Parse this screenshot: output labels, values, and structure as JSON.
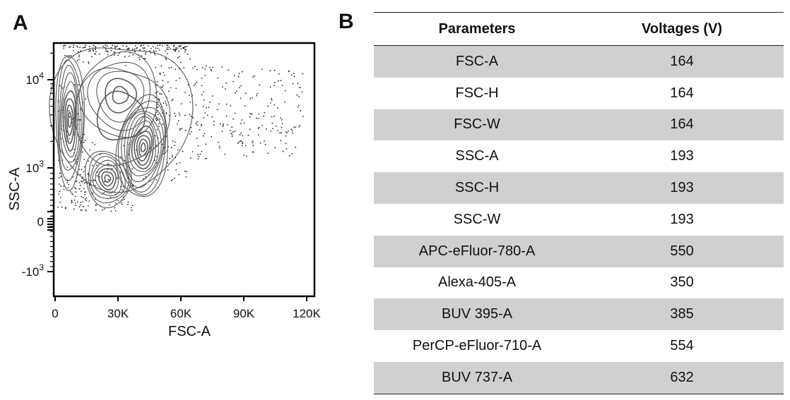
{
  "panels": {
    "a": "A",
    "b": "B"
  },
  "chart_data": [
    {
      "type": "scatter",
      "xlabel": "FSC-A",
      "ylabel": "SSC-A",
      "xlim": [
        0,
        125000
      ],
      "x_ticks": [
        {
          "value": 0,
          "label": "0"
        },
        {
          "value": 30000,
          "label": "30K"
        },
        {
          "value": 60000,
          "label": "60K"
        },
        {
          "value": 90000,
          "label": "90K"
        },
        {
          "value": 120000,
          "label": "120K"
        }
      ],
      "y_scale": "biexponential",
      "y_ticks": [
        {
          "value": -1000,
          "label": "-10",
          "exp": "3"
        },
        {
          "value": 0,
          "label": "0",
          "exp": ""
        },
        {
          "value": 1000,
          "label": "10",
          "exp": "3"
        },
        {
          "value": 10000,
          "label": "10",
          "exp": "4"
        }
      ],
      "style": "contour plot with outliers",
      "populations": [
        {
          "x_center": 7000,
          "y_center": 3500
        },
        {
          "x_center": 42000,
          "y_center": 1700
        },
        {
          "x_center": 25000,
          "y_center": 800
        }
      ]
    },
    {
      "type": "table",
      "columns": [
        "Parameters",
        "Voltages (V)"
      ],
      "rows": [
        [
          "FSC-A",
          "164"
        ],
        [
          "FSC-H",
          "164"
        ],
        [
          "FSC-W",
          "164"
        ],
        [
          "SSC-A",
          "193"
        ],
        [
          "SSC-H",
          "193"
        ],
        [
          "SSC-W",
          "193"
        ],
        [
          "APC-eFluor-780-A",
          "550"
        ],
        [
          "Alexa-405-A",
          "350"
        ],
        [
          "BUV 395-A",
          "385"
        ],
        [
          "PerCP-eFluor-710-A",
          "554"
        ],
        [
          "BUV 737-A",
          "632"
        ]
      ]
    }
  ]
}
